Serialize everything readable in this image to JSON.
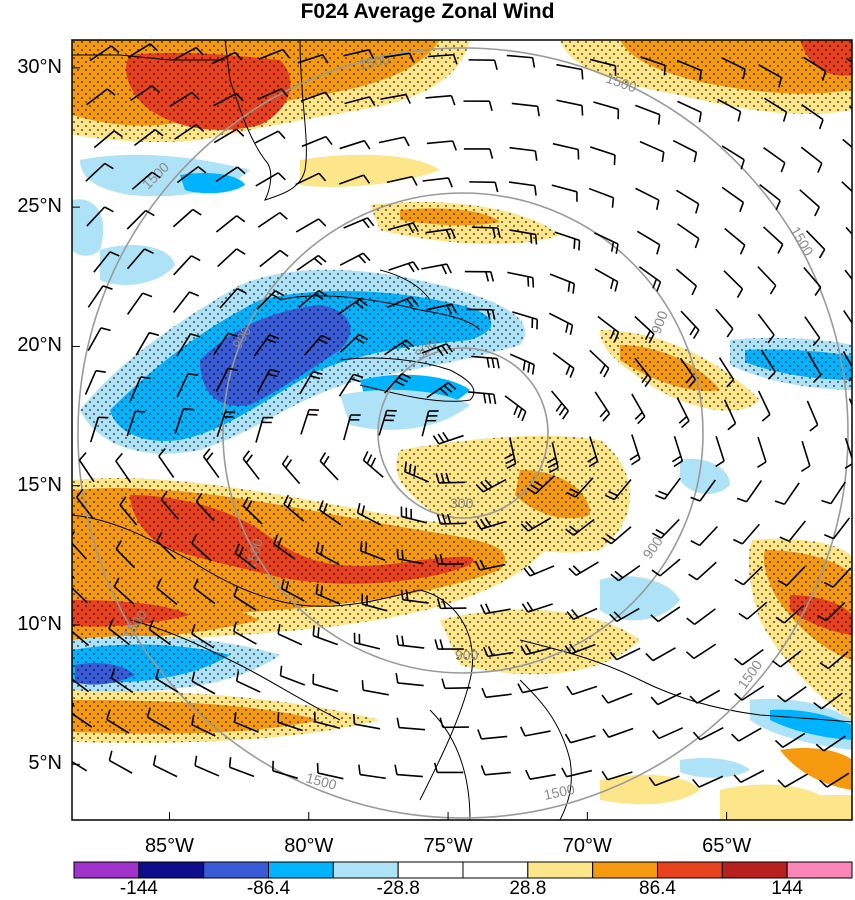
{
  "title": "F024 Average Zonal Wind",
  "map": {
    "lat_labels": [
      {
        "label": "30°N",
        "lat": 30
      },
      {
        "label": "25°N",
        "lat": 25
      },
      {
        "label": "20°N",
        "lat": 20
      },
      {
        "label": "15°N",
        "lat": 15
      },
      {
        "label": "10°N",
        "lat": 10
      },
      {
        "label": "5°N",
        "lat": 5
      }
    ],
    "lon_labels": [
      {
        "label": "85°W",
        "lon": -85
      },
      {
        "label": "80°W",
        "lon": -80
      },
      {
        "label": "75°W",
        "lon": -75
      },
      {
        "label": "70°W",
        "lon": -70
      },
      {
        "label": "65°W",
        "lon": -65
      }
    ],
    "lat_range": [
      3,
      31
    ],
    "lon_range": [
      -88.5,
      -60.5
    ],
    "range_ring_labels": [
      "300",
      "900",
      "1500"
    ],
    "stippling": true,
    "wind_barbs": true
  },
  "colorbar": {
    "colors": [
      "#a033cc",
      "#0d0d8c",
      "#3a5bd6",
      "#00b3ff",
      "#aee3f7",
      "#ffffff",
      "#ffffff",
      "#fde68a",
      "#f59a0e",
      "#e8411d",
      "#b82020",
      "#f986b7"
    ],
    "labels": [
      "-144",
      "-86.4",
      "-28.8",
      "28.8",
      "86.4",
      "144"
    ]
  }
}
